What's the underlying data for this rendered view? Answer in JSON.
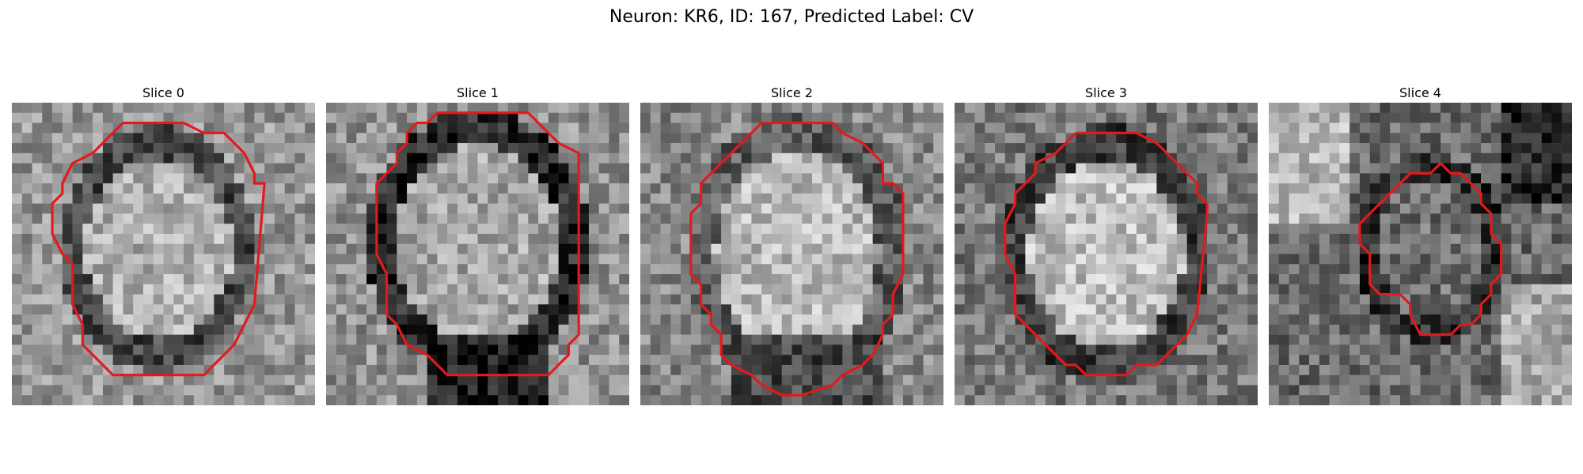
{
  "figure": {
    "title": "Neuron: KR6, ID: 167, Predicted Label: CV"
  },
  "panels": [
    {
      "title": "Slice 0",
      "image": "grayscale-microscopy-slice",
      "contour_color": "#e31a1c"
    },
    {
      "title": "Slice 1",
      "image": "grayscale-microscopy-slice",
      "contour_color": "#e31a1c"
    },
    {
      "title": "Slice 2",
      "image": "grayscale-microscopy-slice",
      "contour_color": "#e31a1c"
    },
    {
      "title": "Slice 3",
      "image": "grayscale-microscopy-slice",
      "contour_color": "#e31a1c"
    },
    {
      "title": "Slice 4",
      "image": "grayscale-microscopy-slice",
      "contour_color": "#e31a1c"
    }
  ]
}
